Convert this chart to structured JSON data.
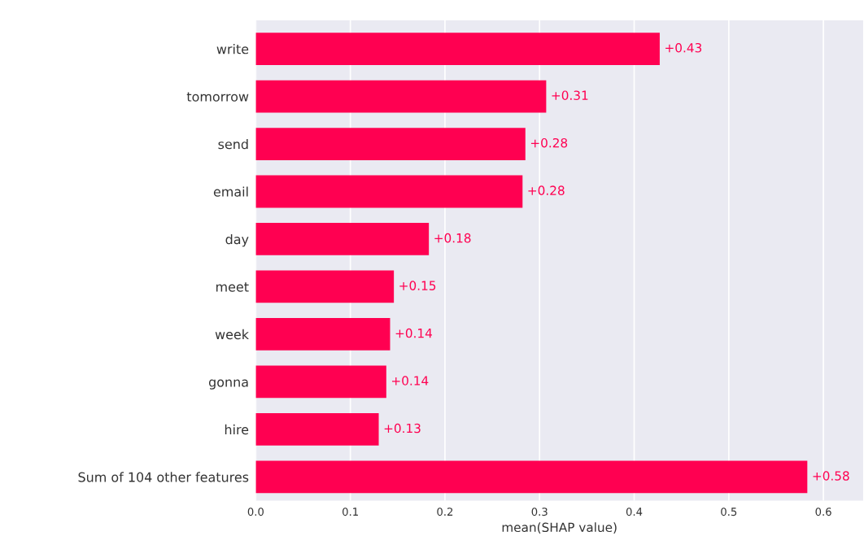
{
  "chart_data": {
    "type": "bar",
    "orientation": "horizontal",
    "xlabel": "mean(SHAP value)",
    "categories": [
      "write",
      "tomorrow",
      "send",
      "email",
      "day",
      "meet",
      "week",
      "gonna",
      "hire",
      "Sum of 104 other features"
    ],
    "values": [
      0.427,
      0.307,
      0.285,
      0.282,
      0.183,
      0.146,
      0.142,
      0.138,
      0.13,
      0.583
    ],
    "value_labels": [
      "+0.43",
      "+0.31",
      "+0.28",
      "+0.28",
      "+0.18",
      "+0.15",
      "+0.14",
      "+0.14",
      "+0.13",
      "+0.58"
    ],
    "color": "#ff0051",
    "xlim": [
      0,
      0.642
    ],
    "xticks": [
      {
        "value": 0,
        "label": "0.0"
      },
      0.1,
      0.2,
      0.3,
      0.4,
      0.5,
      0.6
    ],
    "grid": "x",
    "legend": false
  }
}
